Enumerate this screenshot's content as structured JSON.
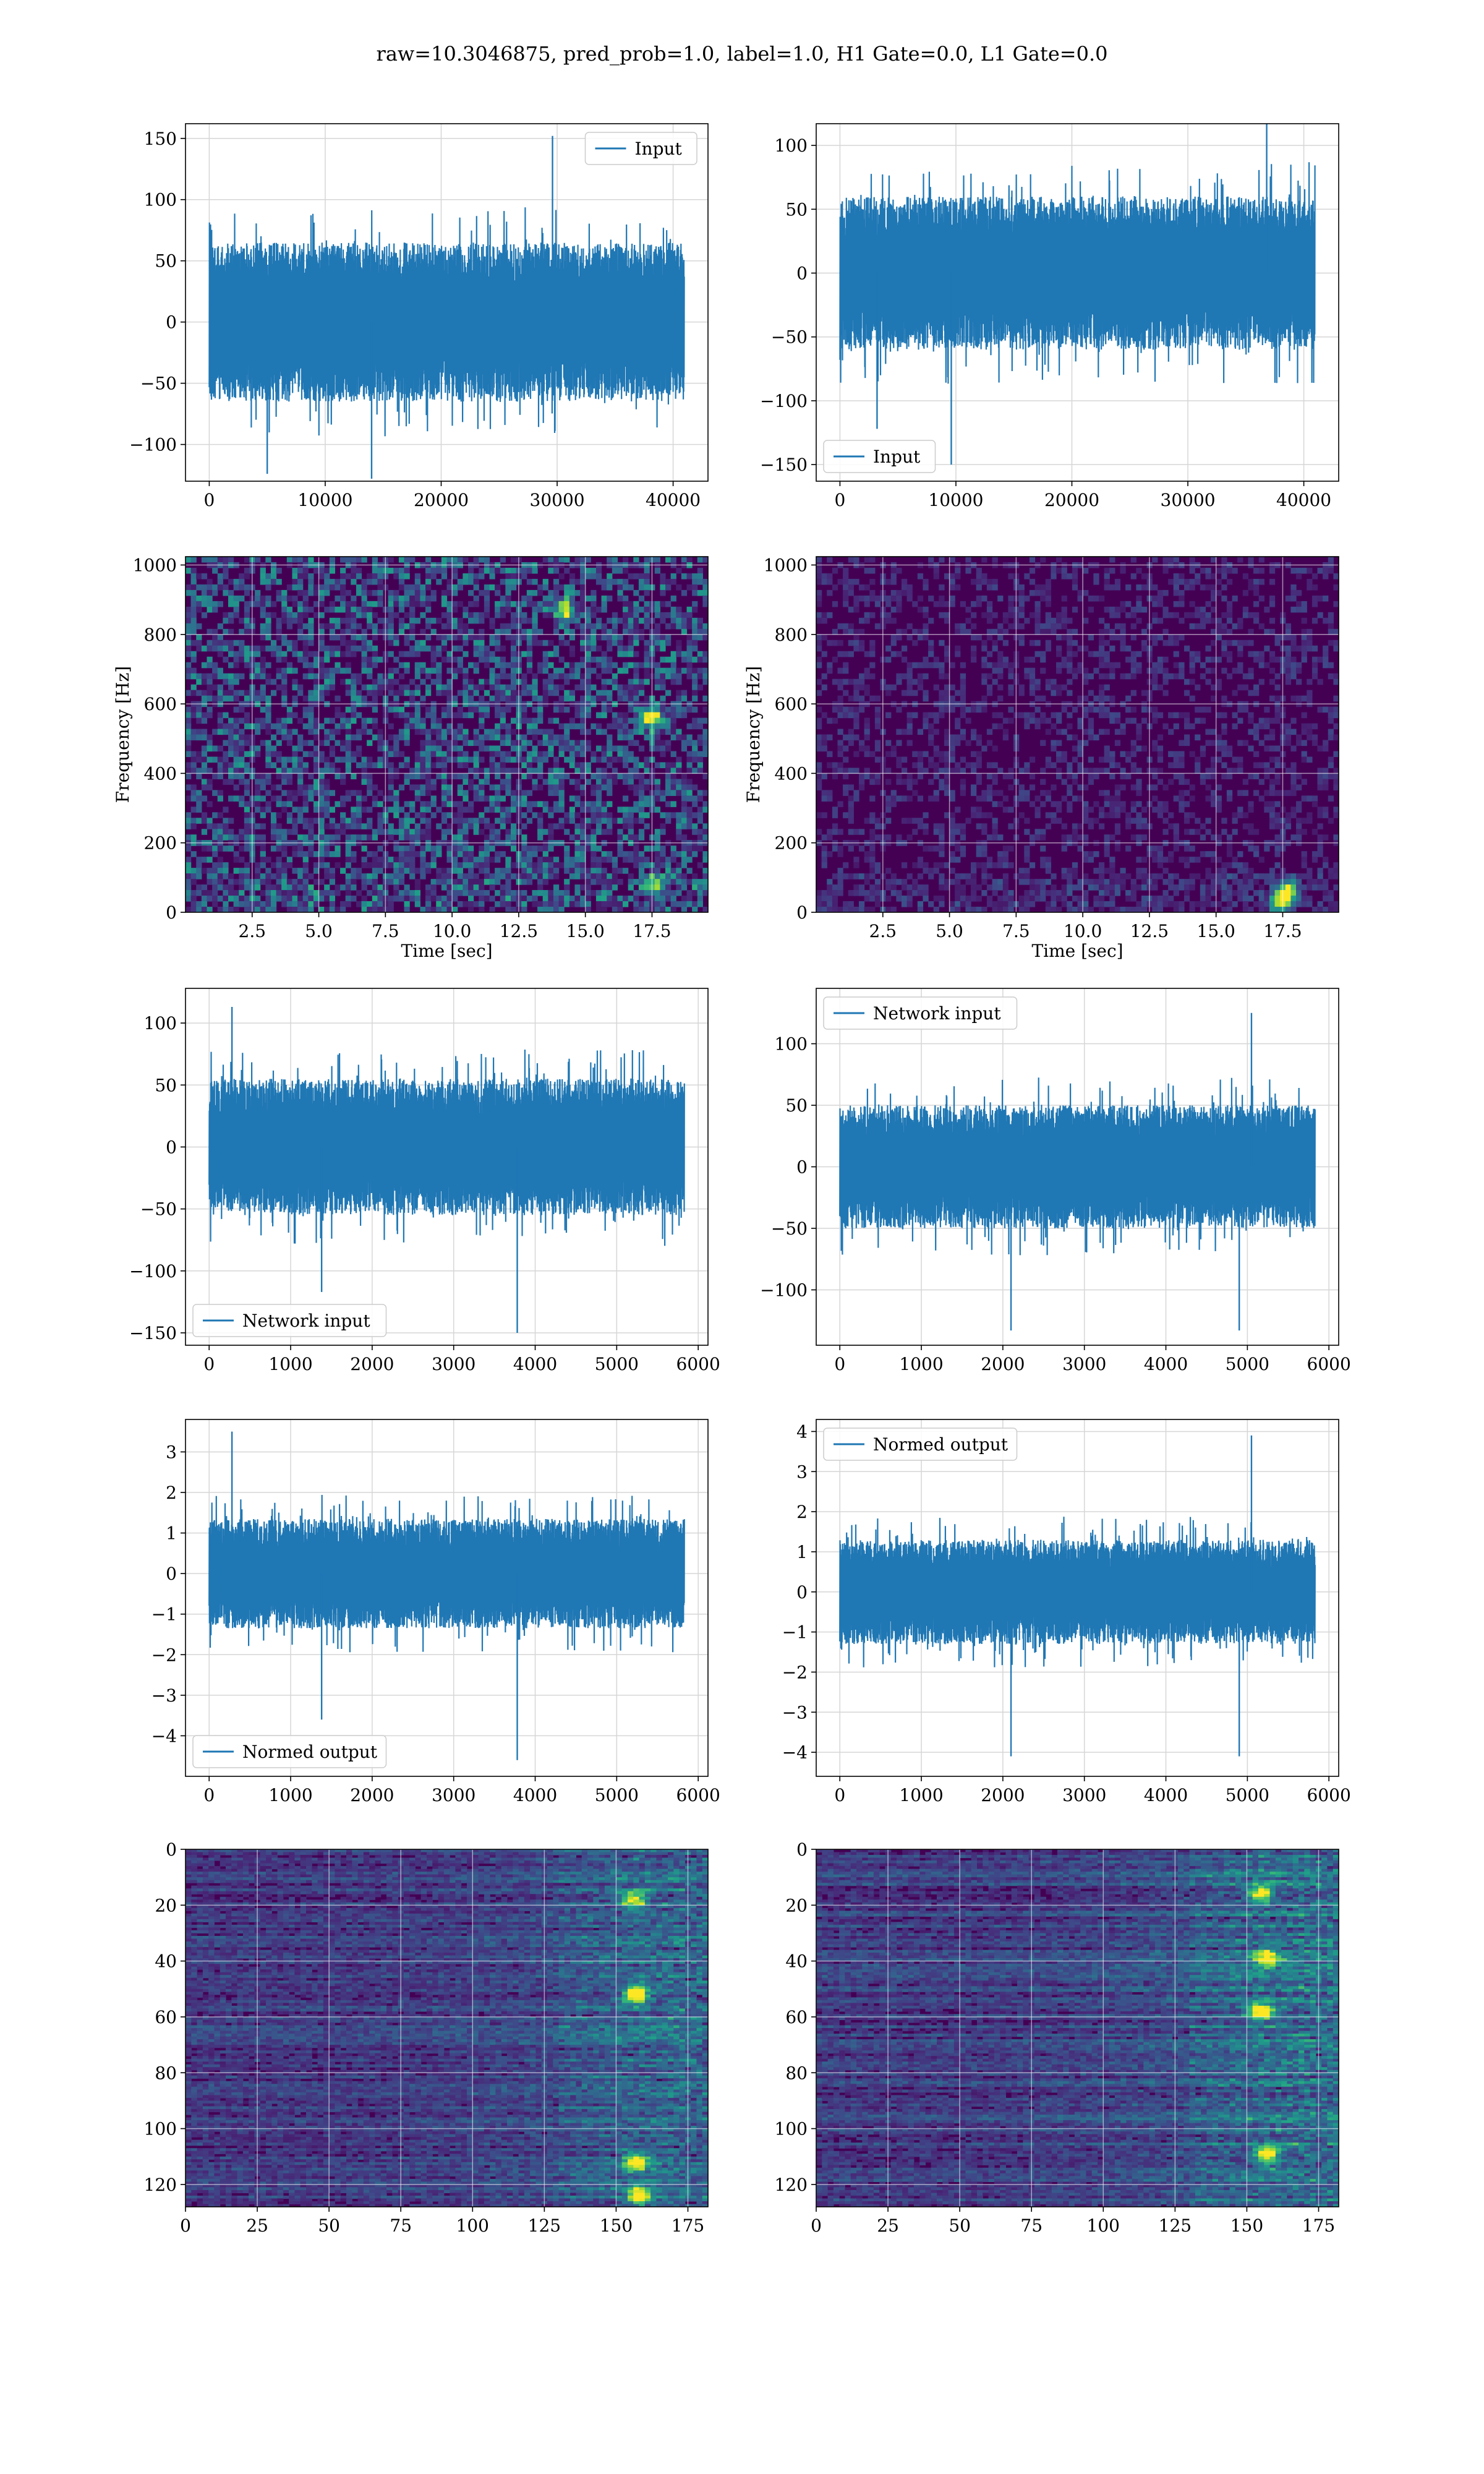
{
  "figure": {
    "title": "raw=10.3046875, pred_prob=1.0, label=1.0, H1 Gate=0.0, L1 Gate=0.0",
    "line_color": "#1f77b4",
    "grid": true,
    "colormap": "viridis"
  },
  "chart_data": [
    {
      "id": "h1-input",
      "type": "line",
      "signal": "strain",
      "series": [
        {
          "name": "Input",
          "x_range": [
            0,
            40960
          ],
          "amplitude_typical": 65,
          "peaks": [
            {
              "x": 29600,
              "y": 152
            },
            {
              "x": 5000,
              "y": -124
            },
            {
              "x": 14000,
              "y": -128
            }
          ]
        }
      ],
      "xlim": [
        -2048,
        43008
      ],
      "ylim": [
        -130,
        162
      ],
      "xticks": [
        0,
        10000,
        20000,
        30000,
        40000
      ],
      "xtick_labels": [
        "0",
        "10000",
        "20000",
        "30000",
        "40000"
      ],
      "yticks": [
        -100,
        -50,
        0,
        50,
        100,
        150
      ],
      "ytick_labels": [
        "−100",
        "−50",
        "0",
        "50",
        "100",
        "150"
      ],
      "legend": {
        "position": "upper-right"
      },
      "xlabel": "",
      "ylabel": ""
    },
    {
      "id": "l1-input",
      "type": "line",
      "signal": "strain",
      "series": [
        {
          "name": "Input",
          "x_range": [
            0,
            40960
          ],
          "amplitude_typical": 60,
          "peaks": [
            {
              "x": 9600,
              "y": -150
            },
            {
              "x": 36800,
              "y": 126
            },
            {
              "x": 3200,
              "y": -122
            }
          ]
        }
      ],
      "xlim": [
        -2048,
        43008
      ],
      "ylim": [
        -163,
        117
      ],
      "xticks": [
        0,
        10000,
        20000,
        30000,
        40000
      ],
      "xtick_labels": [
        "0",
        "10000",
        "20000",
        "30000",
        "40000"
      ],
      "yticks": [
        -150,
        -100,
        -50,
        0,
        50,
        100
      ],
      "ytick_labels": [
        "−150",
        "−100",
        "−50",
        "0",
        "50",
        "100"
      ],
      "legend": {
        "position": "lower-left"
      },
      "xlabel": "",
      "ylabel": ""
    },
    {
      "id": "h1-spectrogram",
      "type": "heatmap",
      "signal": "spectrogram",
      "xlim": [
        0,
        19.6
      ],
      "ylim": [
        0,
        1024
      ],
      "xticks": [
        2.5,
        5.0,
        7.5,
        10.0,
        12.5,
        15.0,
        17.5
      ],
      "xtick_labels": [
        "2.5",
        "5.0",
        "7.5",
        "10.0",
        "12.5",
        "15.0",
        "17.5"
      ],
      "yticks": [
        0,
        200,
        400,
        600,
        800,
        1000
      ],
      "ytick_labels": [
        "0",
        "200",
        "400",
        "600",
        "800",
        "1000"
      ],
      "xlabel": "Time [sec]",
      "ylabel": "Frequency [Hz]",
      "intensity": 0.55,
      "hotspots": [
        {
          "t": 17.5,
          "f": 560,
          "v": 1.0
        },
        {
          "t": 14.2,
          "f": 870,
          "v": 0.85
        },
        {
          "t": 17.6,
          "f": 80,
          "v": 0.7
        }
      ]
    },
    {
      "id": "l1-spectrogram",
      "type": "heatmap",
      "signal": "spectrogram",
      "xlim": [
        0,
        19.6
      ],
      "ylim": [
        0,
        1024
      ],
      "xticks": [
        2.5,
        5.0,
        7.5,
        10.0,
        12.5,
        15.0,
        17.5
      ],
      "xtick_labels": [
        "2.5",
        "5.0",
        "7.5",
        "10.0",
        "12.5",
        "15.0",
        "17.5"
      ],
      "yticks": [
        0,
        200,
        400,
        600,
        800,
        1000
      ],
      "ytick_labels": [
        "0",
        "200",
        "400",
        "600",
        "800",
        "1000"
      ],
      "xlabel": "Time [sec]",
      "ylabel": "Frequency [Hz]",
      "intensity": 0.22,
      "hotspots": [
        {
          "t": 17.7,
          "f": 60,
          "v": 0.9
        },
        {
          "t": 17.4,
          "f": 30,
          "v": 0.8
        }
      ]
    },
    {
      "id": "h1-network-input",
      "type": "line",
      "signal": "strain",
      "series": [
        {
          "name": "Network input",
          "x_range": [
            0,
            5830
          ],
          "amplitude_typical": 55,
          "peaks": [
            {
              "x": 280,
              "y": 113
            },
            {
              "x": 3780,
              "y": -150
            },
            {
              "x": 1380,
              "y": -117
            }
          ]
        }
      ],
      "xlim": [
        -290,
        6120
      ],
      "ylim": [
        -160,
        128
      ],
      "xticks": [
        0,
        1000,
        2000,
        3000,
        4000,
        5000,
        6000
      ],
      "xtick_labels": [
        "0",
        "1000",
        "2000",
        "3000",
        "4000",
        "5000",
        "6000"
      ],
      "yticks": [
        -150,
        -100,
        -50,
        0,
        50,
        100
      ],
      "ytick_labels": [
        "−150",
        "−100",
        "−50",
        "0",
        "50",
        "100"
      ],
      "legend": {
        "position": "lower-left"
      },
      "xlabel": "",
      "ylabel": ""
    },
    {
      "id": "l1-network-input",
      "type": "line",
      "signal": "strain",
      "series": [
        {
          "name": "Network input",
          "x_range": [
            0,
            5830
          ],
          "amplitude_typical": 50,
          "peaks": [
            {
              "x": 5050,
              "y": 125
            },
            {
              "x": 4900,
              "y": -133
            },
            {
              "x": 2100,
              "y": -133
            }
          ]
        }
      ],
      "xlim": [
        -290,
        6120
      ],
      "ylim": [
        -145,
        145
      ],
      "xticks": [
        0,
        1000,
        2000,
        3000,
        4000,
        5000,
        6000
      ],
      "xtick_labels": [
        "0",
        "1000",
        "2000",
        "3000",
        "4000",
        "5000",
        "6000"
      ],
      "yticks": [
        -100,
        -50,
        0,
        50,
        100
      ],
      "ytick_labels": [
        "−100",
        "−50",
        "0",
        "50",
        "100"
      ],
      "legend": {
        "position": "upper-left"
      },
      "xlabel": "",
      "ylabel": ""
    },
    {
      "id": "h1-normed-output",
      "type": "line",
      "signal": "strain",
      "series": [
        {
          "name": "Normed output",
          "x_range": [
            0,
            5830
          ],
          "amplitude_typical": 1.35,
          "peaks": [
            {
              "x": 280,
              "y": 3.5
            },
            {
              "x": 3780,
              "y": -4.6
            },
            {
              "x": 1380,
              "y": -3.6
            }
          ]
        }
      ],
      "xlim": [
        -290,
        6120
      ],
      "ylim": [
        -5.0,
        3.8
      ],
      "xticks": [
        0,
        1000,
        2000,
        3000,
        4000,
        5000,
        6000
      ],
      "xtick_labels": [
        "0",
        "1000",
        "2000",
        "3000",
        "4000",
        "5000",
        "6000"
      ],
      "yticks": [
        -4,
        -3,
        -2,
        -1,
        0,
        1,
        2,
        3
      ],
      "ytick_labels": [
        "−4",
        "−3",
        "−2",
        "−1",
        "0",
        "1",
        "2",
        "3"
      ],
      "legend": {
        "position": "lower-left"
      },
      "xlabel": "",
      "ylabel": ""
    },
    {
      "id": "l1-normed-output",
      "type": "line",
      "signal": "strain",
      "series": [
        {
          "name": "Normed output",
          "x_range": [
            0,
            5830
          ],
          "amplitude_typical": 1.3,
          "peaks": [
            {
              "x": 5050,
              "y": 3.9
            },
            {
              "x": 4900,
              "y": -4.1
            },
            {
              "x": 2100,
              "y": -4.1
            }
          ]
        }
      ],
      "xlim": [
        -290,
        6120
      ],
      "ylim": [
        -4.6,
        4.3
      ],
      "xticks": [
        0,
        1000,
        2000,
        3000,
        4000,
        5000,
        6000
      ],
      "xtick_labels": [
        "0",
        "1000",
        "2000",
        "3000",
        "4000",
        "5000",
        "6000"
      ],
      "yticks": [
        -4,
        -3,
        -2,
        -1,
        0,
        1,
        2,
        3,
        4
      ],
      "ytick_labels": [
        "−4",
        "−3",
        "−2",
        "−1",
        "0",
        "1",
        "2",
        "3",
        "4"
      ],
      "legend": {
        "position": "upper-left"
      },
      "xlabel": "",
      "ylabel": ""
    },
    {
      "id": "h1-feature-map",
      "type": "heatmap",
      "signal": "featuremap",
      "xlim": [
        0,
        182
      ],
      "ylim": [
        128,
        0
      ],
      "xticks": [
        0,
        25,
        50,
        75,
        100,
        125,
        150,
        175
      ],
      "xtick_labels": [
        "0",
        "25",
        "50",
        "75",
        "100",
        "125",
        "150",
        "175"
      ],
      "yticks": [
        0,
        20,
        40,
        60,
        80,
        100,
        120
      ],
      "ytick_labels": [
        "0",
        "20",
        "40",
        "60",
        "80",
        "100",
        "120"
      ],
      "xlabel": "",
      "ylabel": "",
      "intensity": 0.6,
      "hotspots": [
        {
          "t": 157,
          "f": 52,
          "v": 1.0
        },
        {
          "t": 157,
          "f": 112,
          "v": 0.9
        },
        {
          "t": 158,
          "f": 124,
          "v": 0.95
        },
        {
          "t": 156,
          "f": 18,
          "v": 0.8
        }
      ]
    },
    {
      "id": "l1-feature-map",
      "type": "heatmap",
      "signal": "featuremap",
      "xlim": [
        0,
        182
      ],
      "ylim": [
        128,
        0
      ],
      "xticks": [
        0,
        25,
        50,
        75,
        100,
        125,
        150,
        175
      ],
      "xtick_labels": [
        "0",
        "25",
        "50",
        "75",
        "100",
        "125",
        "150",
        "175"
      ],
      "yticks": [
        0,
        20,
        40,
        60,
        80,
        100,
        120
      ],
      "ytick_labels": [
        "0",
        "20",
        "40",
        "60",
        "80",
        "100",
        "120"
      ],
      "xlabel": "",
      "ylabel": "",
      "intensity": 0.7,
      "hotspots": [
        {
          "t": 155,
          "f": 58,
          "v": 1.0
        },
        {
          "t": 157,
          "f": 109,
          "v": 0.95
        },
        {
          "t": 155,
          "f": 16,
          "v": 0.9
        },
        {
          "t": 157,
          "f": 39,
          "v": 0.85
        }
      ]
    }
  ]
}
